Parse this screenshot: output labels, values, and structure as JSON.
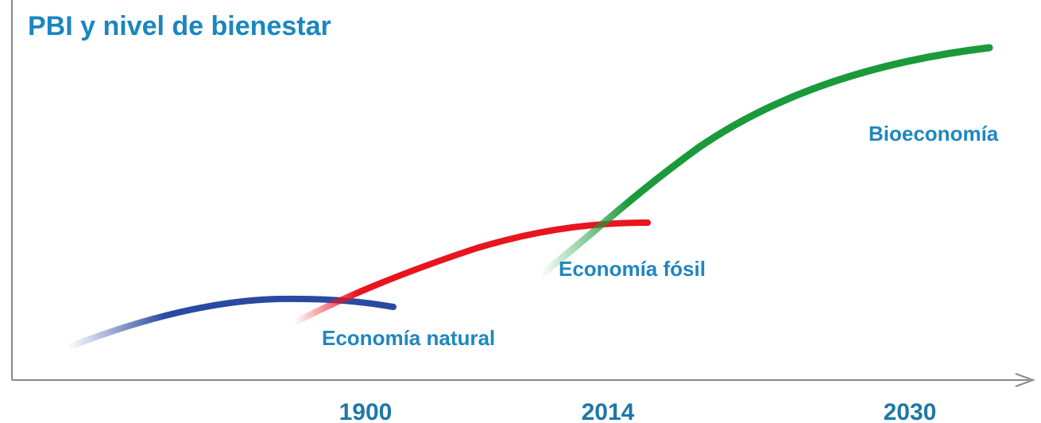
{
  "title": "PBI y nivel de bienestar",
  "x_axis_labels": [
    "1900",
    "2014",
    "2030"
  ],
  "curves": [
    {
      "label": "Economía natural"
    },
    {
      "label": "Economía fósil"
    },
    {
      "label": "Bioeconomía"
    }
  ]
}
